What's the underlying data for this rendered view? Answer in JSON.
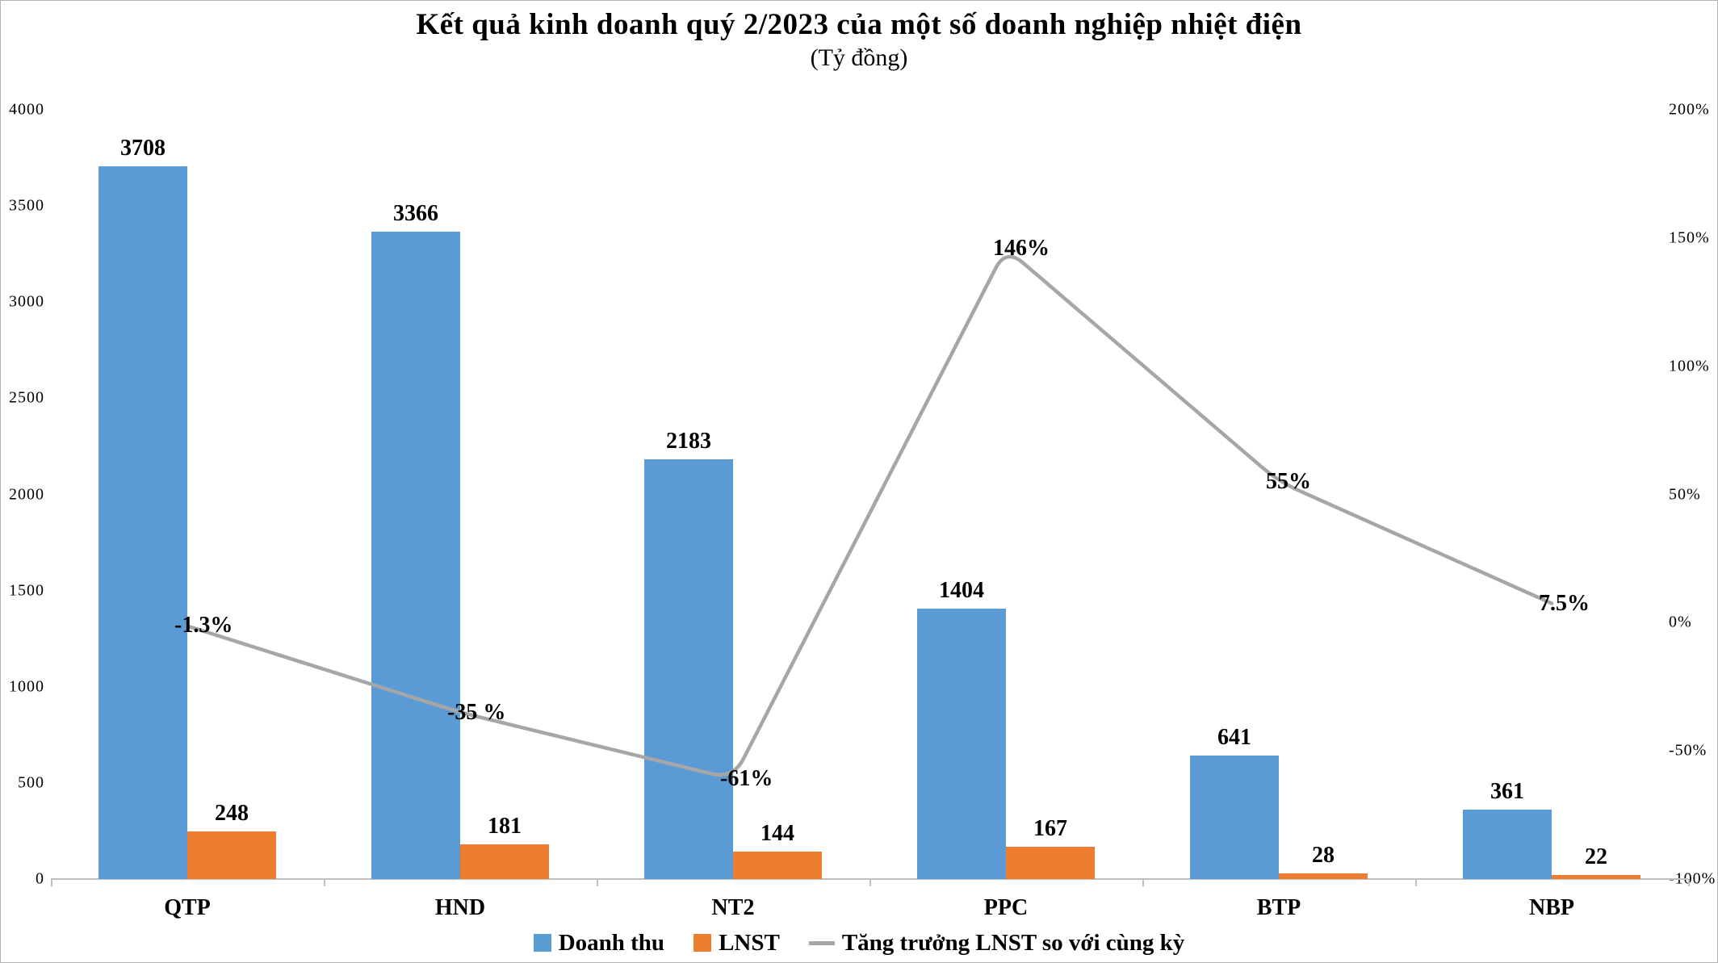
{
  "page": {
    "background": "#ffffff",
    "border_color": "#b3b3b3"
  },
  "chart_data": {
    "type": "bar",
    "title": "Kết quả kinh doanh quý 2/2023 của một số doanh nghiệp nhiệt điện",
    "subtitle": "(Tỷ đồng)",
    "categories": [
      "QTP",
      "HND",
      "NT2",
      "PPC",
      "BTP",
      "NBP"
    ],
    "series": [
      {
        "name": "Doanh thu",
        "color": "#5B9BD5",
        "values": [
          3708,
          3366,
          2183,
          1404,
          641,
          361
        ],
        "value_labels": [
          "3708",
          "3366",
          "2183",
          "1404",
          "641",
          "361"
        ]
      },
      {
        "name": "LNST",
        "color": "#ED7D31",
        "values": [
          248,
          181,
          144,
          167,
          28,
          22
        ],
        "value_labels": [
          "248",
          "181",
          "144",
          "167",
          "28",
          "22"
        ]
      }
    ],
    "line_series": {
      "name": "Tăng trưởng LNST so với cùng kỳ",
      "color": "#A6A6A6",
      "values": [
        -1.3,
        -35,
        -61,
        146,
        55,
        7.5
      ],
      "point_labels": [
        "-1.3%",
        "-35 %",
        "-61%",
        "146%",
        "55%",
        "7.5%"
      ]
    },
    "left_axis": {
      "min": 0,
      "max": 4000,
      "step": 500,
      "tick_labels": [
        "4000",
        "3500",
        "3000",
        "2500",
        "2000",
        "1500",
        "1000",
        "500",
        "0"
      ]
    },
    "right_axis": {
      "min": -100,
      "max": 200,
      "step": 50,
      "tick_labels": [
        "200%",
        "150%",
        "100%",
        "50%",
        "0%",
        "-50%",
        "-100%"
      ]
    },
    "axis_color": "#BFBFBF",
    "grid": "off",
    "legend_position": "bottom",
    "legend": [
      {
        "label": "Doanh thu",
        "marker": "square",
        "color": "#5B9BD5"
      },
      {
        "label": "LNST",
        "marker": "square",
        "color": "#ED7D31"
      },
      {
        "label": "Tăng trưởng LNST so với cùng kỳ",
        "marker": "line",
        "color": "#A6A6A6"
      }
    ]
  }
}
